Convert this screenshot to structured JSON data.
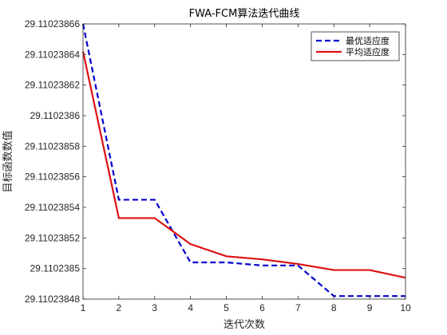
{
  "chart_data": {
    "type": "line",
    "title": "FWA-FCM算法迭代曲线",
    "xlabel": "迭代次数",
    "ylabel": "目标函数数值",
    "xlim": [
      1,
      10
    ],
    "ylim": [
      29.11023848,
      29.11023866
    ],
    "xticks": [
      1,
      2,
      3,
      4,
      5,
      6,
      7,
      8,
      9,
      10
    ],
    "xtick_labels": [
      "1",
      "2",
      "3",
      "4",
      "5",
      "6",
      "7",
      "8",
      "9",
      "10"
    ],
    "yticks": [
      29.11023848,
      29.1102385,
      29.11023852,
      29.11023854,
      29.11023856,
      29.11023858,
      29.1102386,
      29.11023862,
      29.11023864,
      29.11023866
    ],
    "ytick_labels": [
      "29.11023848",
      "29.1102385",
      "29.11023852",
      "29.11023854",
      "29.11023856",
      "29.11023858",
      "29.1102386",
      "29.11023862",
      "29.11023864",
      "29.11023866"
    ],
    "grid": false,
    "legend_position": "top-right",
    "x": [
      1,
      2,
      3,
      4,
      5,
      6,
      7,
      8,
      9,
      10
    ],
    "series": [
      {
        "name": "最优适应度",
        "color": "#0000cc",
        "style": "dashed",
        "values": [
          29.11023866,
          29.110238545,
          29.110238545,
          29.110238504,
          29.110238504,
          29.110238502,
          29.110238502,
          29.110238482,
          29.110238482,
          29.110238482
        ]
      },
      {
        "name": "平均适应度",
        "color": "#dd1111",
        "style": "solid",
        "values": [
          29.110238642,
          29.110238533,
          29.110238533,
          29.110238516,
          29.110238508,
          29.110238506,
          29.110238503,
          29.110238499,
          29.110238499,
          29.110238494
        ]
      }
    ]
  }
}
